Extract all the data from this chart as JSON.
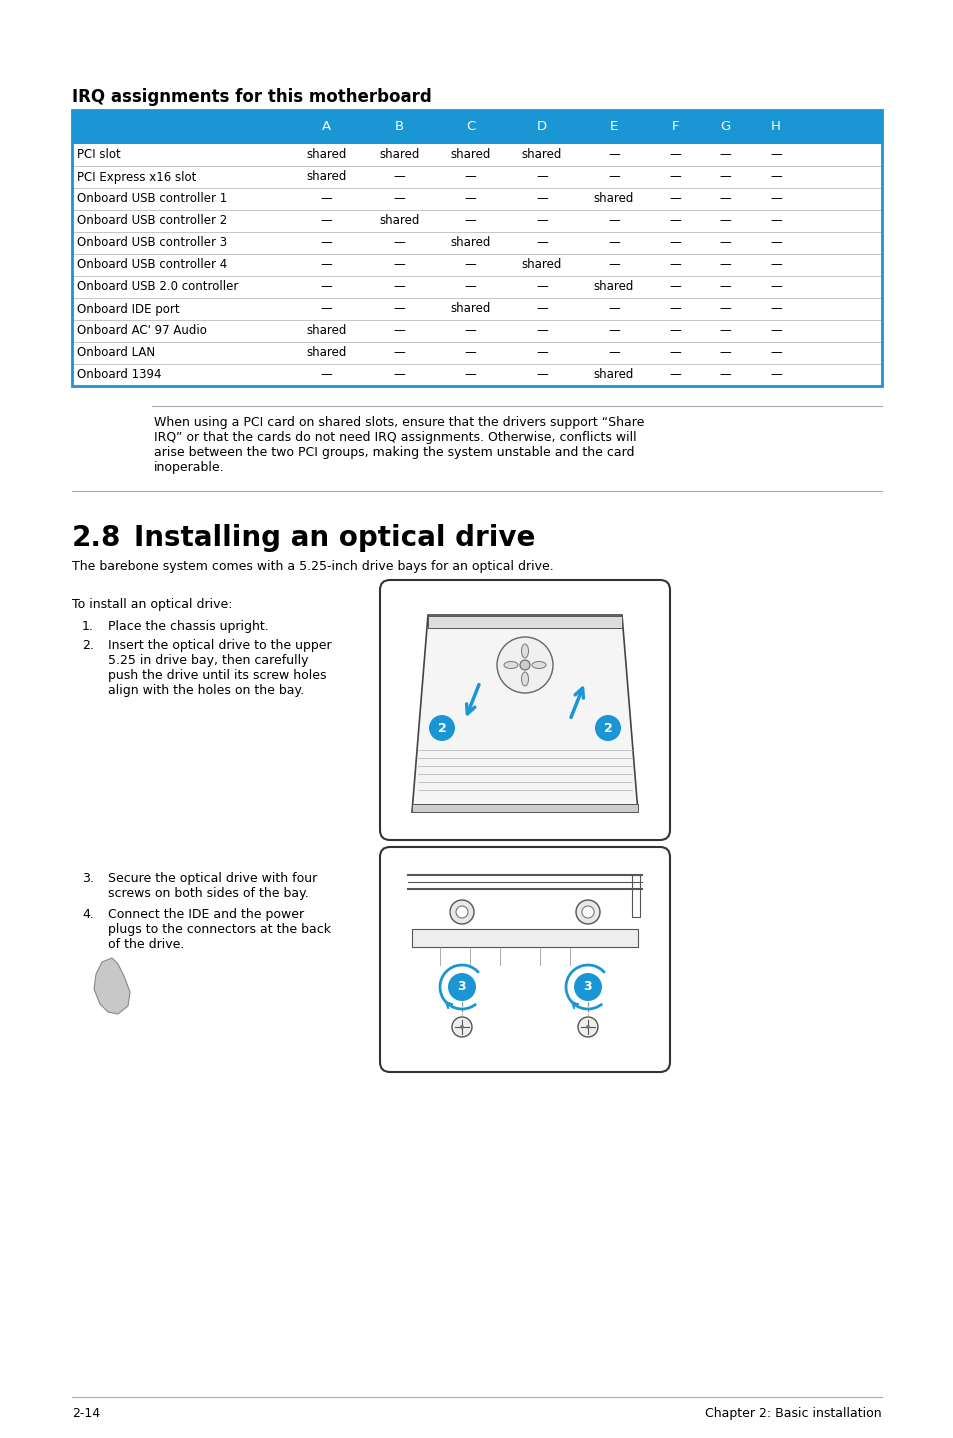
{
  "page_bg": "#ffffff",
  "irq_title": "IRQ assignments for this motherboard",
  "irq_title_fontsize": 12,
  "table_header_bg": "#1a96d4",
  "table_header_color": "#ffffff",
  "table_border_color": "#1a96d4",
  "table_text_color": "#000000",
  "table_col_headers": [
    "A",
    "B",
    "C",
    "D",
    "E",
    "F",
    "G",
    "H"
  ],
  "table_rows": [
    [
      "PCI slot",
      "shared",
      "shared",
      "shared",
      "shared",
      "—",
      "—",
      "—",
      "—"
    ],
    [
      "PCI Express x16 slot",
      "shared",
      "—",
      "—",
      "—",
      "—",
      "—",
      "—",
      "—"
    ],
    [
      "Onboard USB controller 1",
      "—",
      "—",
      "—",
      "—",
      "shared",
      "—",
      "—",
      "—"
    ],
    [
      "Onboard USB controller 2",
      "—",
      "shared",
      "—",
      "—",
      "—",
      "—",
      "—",
      "—"
    ],
    [
      "Onboard USB controller 3",
      "—",
      "—",
      "shared",
      "—",
      "—",
      "—",
      "—",
      "—"
    ],
    [
      "Onboard USB controller 4",
      "—",
      "—",
      "—",
      "shared",
      "—",
      "—",
      "—",
      "—"
    ],
    [
      "Onboard USB 2.0 controller",
      "—",
      "—",
      "—",
      "—",
      "shared",
      "—",
      "—",
      "—"
    ],
    [
      "Onboard IDE port",
      "—",
      "—",
      "shared",
      "—",
      "—",
      "—",
      "—",
      "—"
    ],
    [
      "Onboard AC' 97 Audio",
      "shared",
      "—",
      "—",
      "—",
      "—",
      "—",
      "—",
      "—"
    ],
    [
      "Onboard LAN",
      "shared",
      "—",
      "—",
      "—",
      "—",
      "—",
      "—",
      "—"
    ],
    [
      "Onboard 1394",
      "—",
      "—",
      "—",
      "—",
      "shared",
      "—",
      "—",
      "—"
    ]
  ],
  "note_text_lines": [
    "When using a PCI card on shared slots, ensure that the drivers support “Share",
    "IRQ” or that the cards do not need IRQ assignments. Otherwise, conflicts will",
    "arise between the two PCI groups, making the system unstable and the card",
    "inoperable."
  ],
  "section_number": "2.8",
  "section_title": "Installing an optical drive",
  "section_title_fontsize": 20,
  "section_intro": "The barebone system comes with a 5.25-inch drive bays for an optical drive.",
  "install_intro": "To install an optical drive:",
  "step1": "Place the chassis upright.",
  "step2_lines": [
    "Insert the optical drive to the upper",
    "5.25 in drive bay, then carefully",
    "push the drive until its screw holes",
    "align with the holes on the bay."
  ],
  "step3_lines": [
    "Secure the optical drive with four",
    "screws on both sides of the bay."
  ],
  "step4_lines": [
    "Connect the IDE and the power",
    "plugs to the connectors at the back",
    "of the drive."
  ],
  "footer_left": "2-14",
  "footer_right": "Chapter 2: Basic installation",
  "body_fontsize": 9.0,
  "table_fontsize": 8.5,
  "blue_color": "#1a96d4"
}
